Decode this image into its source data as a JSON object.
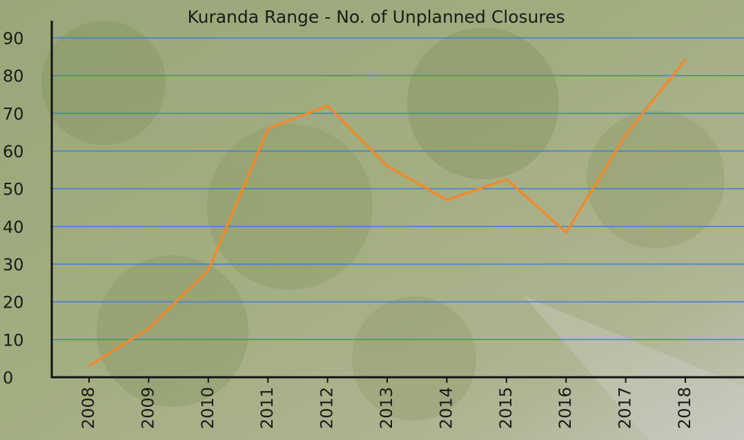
{
  "chart_data": {
    "type": "line",
    "title": "Kuranda Range - No. of Unplanned Closures",
    "categories": [
      "2008",
      "2009",
      "2010",
      "2011",
      "2012",
      "2013",
      "2014",
      "2015",
      "2016",
      "2017",
      "2018"
    ],
    "values": [
      3,
      13,
      28.5,
      66,
      72,
      56,
      47,
      52.5,
      38.4,
      64.4,
      84.3
    ],
    "color": "#f08a2c",
    "ylim": [
      0,
      90
    ],
    "yticks": [
      0,
      10,
      20,
      30,
      40,
      50,
      60,
      70,
      80,
      90
    ],
    "grid": true,
    "grid_color": "#3b7fd4"
  }
}
